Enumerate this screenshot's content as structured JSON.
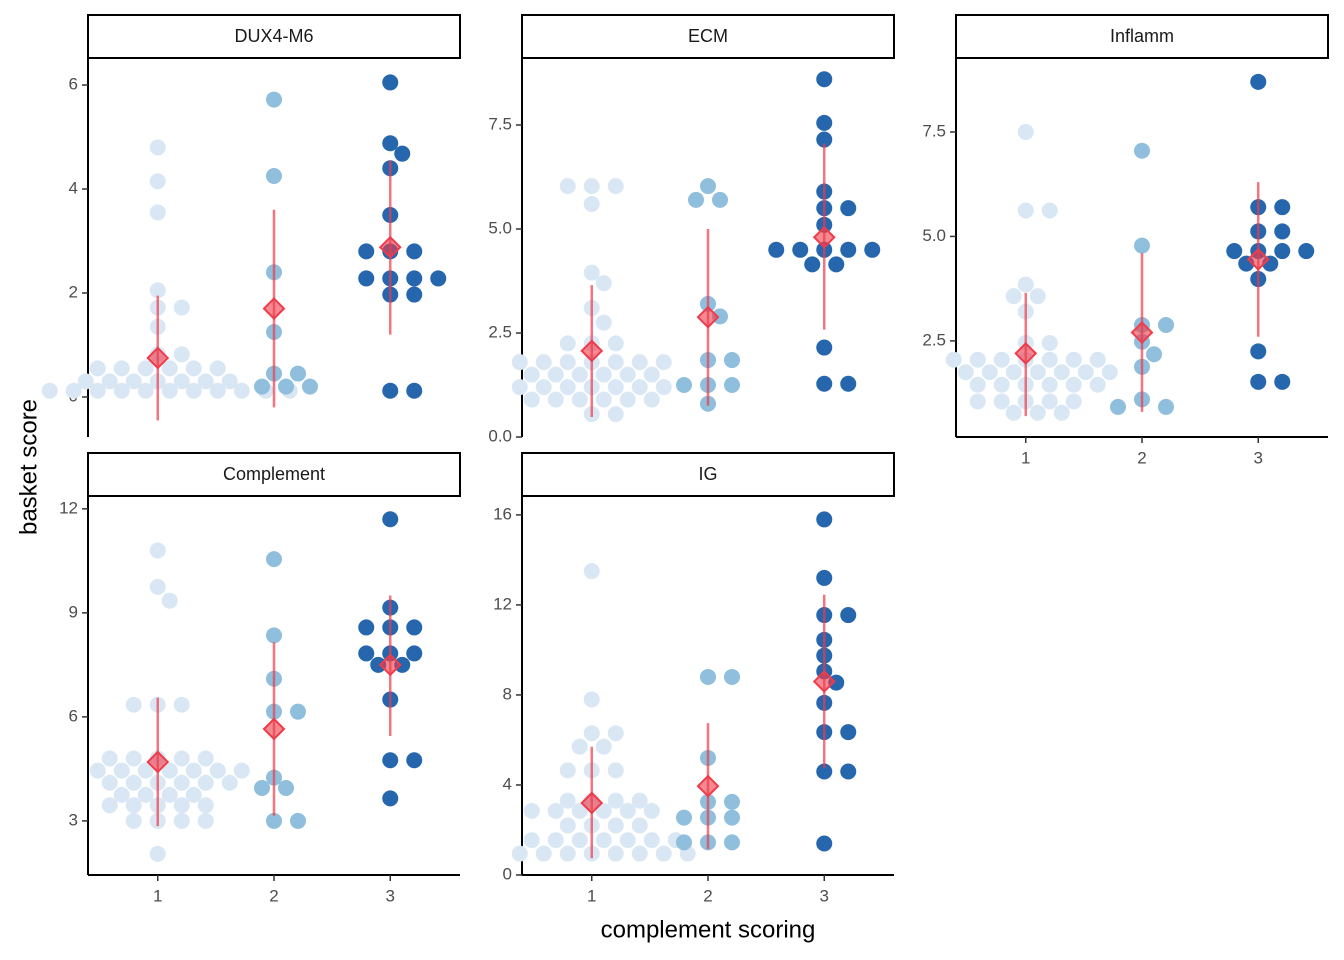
{
  "xlabel": "complement scoring",
  "ylabel": "basket score",
  "chart_data": [
    {
      "type": "beeswarm",
      "title": "DUX4-M6",
      "categories": [
        "1",
        "2",
        "3"
      ],
      "colors": [
        "#d9e7f5",
        "#8fbfdc",
        "#2666ad"
      ],
      "x_axis": false,
      "ylim": [
        -0.77,
        6.52
      ],
      "yticks": [
        0,
        2,
        4,
        6
      ],
      "values": [
        [
          4.8,
          4.15,
          3.55,
          2.05,
          1.72,
          1.72,
          1.35,
          0.82,
          0.82,
          0.55,
          0.55,
          0.55,
          0.55,
          0.55,
          0.55,
          0.3,
          0.3,
          0.3,
          0.3,
          0.3,
          0.3,
          0.3,
          0.12,
          0.12,
          0.12,
          0.12,
          0.12,
          0.12,
          0.12,
          0.12,
          0.12,
          0.12,
          0.12
        ],
        [
          5.72,
          4.25,
          2.4,
          1.25,
          0.45,
          0.45,
          0.2,
          0.2,
          0.2
        ],
        [
          6.05,
          4.88,
          4.68,
          4.4,
          3.5,
          2.8,
          2.8,
          2.8,
          2.28,
          2.28,
          2.28,
          2.28,
          1.97,
          1.97,
          0.12,
          0.12
        ]
      ],
      "summary": {
        "color": "#ef3b4a",
        "mean": [
          0.75,
          1.7,
          2.88
        ],
        "lower": [
          -0.45,
          -0.2,
          1.2
        ],
        "upper": [
          1.95,
          3.6,
          4.55
        ]
      }
    },
    {
      "type": "beeswarm",
      "title": "ECM",
      "categories": [
        "1",
        "2",
        "3"
      ],
      "colors": [
        "#d9e7f5",
        "#8fbfdc",
        "#2666ad"
      ],
      "x_axis": false,
      "ylim": [
        0,
        9.11
      ],
      "yticks": [
        {
          "value": 0,
          "label": "0.0"
        },
        {
          "value": 2.5,
          "label": "2.5"
        },
        {
          "value": 5,
          "label": "5.0"
        },
        {
          "value": 7.5,
          "label": "7.5"
        }
      ],
      "values": [
        [
          6.03,
          6.03,
          6.03,
          5.6,
          3.95,
          3.7,
          3.1,
          2.75,
          2.25,
          2.25,
          2.25,
          1.8,
          1.8,
          1.8,
          1.8,
          1.8,
          1.8,
          1.8,
          1.5,
          1.5,
          1.5,
          1.5,
          1.5,
          1.5,
          1.2,
          1.2,
          1.2,
          1.2,
          1.2,
          1.2,
          1.2,
          0.9,
          0.9,
          0.9,
          0.9,
          0.9,
          0.9,
          0.55,
          0.55
        ],
        [
          6.03,
          5.7,
          5.7,
          3.2,
          2.9,
          1.85,
          1.85,
          1.25,
          1.25,
          1.25,
          0.8
        ],
        [
          8.6,
          7.55,
          7.15,
          5.9,
          5.5,
          5.5,
          5.1,
          4.5,
          4.5,
          4.5,
          4.5,
          4.5,
          4.15,
          4.15,
          2.15,
          1.28,
          1.28
        ]
      ],
      "summary": {
        "color": "#ef3b4a",
        "mean": [
          2.07,
          2.88,
          4.8
        ],
        "lower": [
          0.48,
          0.75,
          2.58
        ],
        "upper": [
          3.65,
          5.0,
          7.05
        ]
      }
    },
    {
      "type": "beeswarm",
      "title": "Inflamm",
      "categories": [
        "1",
        "2",
        "3"
      ],
      "colors": [
        "#d9e7f5",
        "#8fbfdc",
        "#2666ad"
      ],
      "x_axis": true,
      "ylim": [
        0.2,
        9.27
      ],
      "yticks": [
        {
          "value": 2.5,
          "label": "2.5"
        },
        {
          "value": 5,
          "label": "5.0"
        },
        {
          "value": 7.5,
          "label": "7.5"
        }
      ],
      "values": [
        [
          7.5,
          5.62,
          5.62,
          3.85,
          3.57,
          3.57,
          3.2,
          2.45,
          2.45,
          2.05,
          2.05,
          2.05,
          2.05,
          2.05,
          2.05,
          2.05,
          1.75,
          1.75,
          1.75,
          1.75,
          1.75,
          1.75,
          1.75,
          1.45,
          1.45,
          1.45,
          1.45,
          1.45,
          1.45,
          1.05,
          1.05,
          1.05,
          1.05,
          1.05,
          0.78,
          0.78,
          0.78
        ],
        [
          7.05,
          4.78,
          2.88,
          2.88,
          2.48,
          2.18,
          1.88,
          1.1,
          0.92,
          0.92
        ],
        [
          8.7,
          5.7,
          5.7,
          5.12,
          5.12,
          4.65,
          4.65,
          4.65,
          4.65,
          4.35,
          4.35,
          3.98,
          2.25,
          1.52,
          1.52
        ]
      ],
      "summary": {
        "color": "#ef3b4a",
        "mean": [
          2.2,
          2.7,
          4.45
        ],
        "lower": [
          0.7,
          0.8,
          2.6
        ],
        "upper": [
          3.65,
          4.6,
          6.3
        ]
      }
    },
    {
      "type": "beeswarm",
      "title": "Complement",
      "categories": [
        "1",
        "2",
        "3"
      ],
      "colors": [
        "#d9e7f5",
        "#8fbfdc",
        "#2666ad"
      ],
      "x_axis": true,
      "ylim": [
        1.44,
        12.37
      ],
      "yticks": [
        3,
        6,
        9,
        12
      ],
      "values": [
        [
          10.8,
          9.75,
          9.35,
          6.35,
          6.35,
          6.35,
          4.8,
          4.8,
          4.8,
          4.8,
          4.8,
          4.45,
          4.45,
          4.45,
          4.45,
          4.45,
          4.45,
          4.45,
          4.1,
          4.1,
          4.1,
          4.1,
          4.1,
          4.1,
          3.75,
          3.75,
          3.75,
          3.75,
          3.45,
          3.45,
          3.45,
          3.45,
          3.45,
          3.0,
          3.0,
          3.0,
          3.0,
          2.05
        ],
        [
          10.55,
          8.35,
          7.1,
          6.15,
          6.15,
          4.25,
          3.95,
          3.95,
          3.0,
          3.0
        ],
        [
          11.7,
          9.15,
          8.58,
          8.58,
          8.58,
          7.83,
          7.83,
          7.83,
          7.5,
          7.5,
          6.5,
          4.75,
          4.75,
          3.65
        ]
      ],
      "summary": {
        "color": "#ef3b4a",
        "mean": [
          4.7,
          5.65,
          7.5
        ],
        "lower": [
          2.85,
          3.15,
          5.45
        ],
        "upper": [
          6.55,
          8.15,
          9.5
        ]
      }
    },
    {
      "type": "beeswarm",
      "title": "IG",
      "categories": [
        "1",
        "2",
        "3"
      ],
      "colors": [
        "#d9e7f5",
        "#8fbfdc",
        "#2666ad"
      ],
      "x_axis": true,
      "ylim": [
        0,
        16.84
      ],
      "yticks": [
        0,
        4,
        8,
        12,
        16
      ],
      "values": [
        [
          13.5,
          7.8,
          6.3,
          6.3,
          5.7,
          5.7,
          4.65,
          4.65,
          4.65,
          3.3,
          3.3,
          3.3,
          3.3,
          2.85,
          2.85,
          2.85,
          2.85,
          2.85,
          2.85,
          2.2,
          2.2,
          2.2,
          2.2,
          1.55,
          1.55,
          1.55,
          1.55,
          1.55,
          1.55,
          1.55,
          0.95,
          0.95,
          0.95,
          0.95,
          0.95,
          0.95,
          0.95,
          0.95
        ],
        [
          8.8,
          8.8,
          5.2,
          3.25,
          3.25,
          2.55,
          2.55,
          2.55,
          1.45,
          1.45,
          1.45
        ],
        [
          15.8,
          13.2,
          11.55,
          11.55,
          10.45,
          9.75,
          9.05,
          8.55,
          7.65,
          6.35,
          6.35,
          4.6,
          4.6,
          1.4
        ]
      ],
      "summary": {
        "color": "#ef3b4a",
        "mean": [
          3.2,
          3.95,
          8.6
        ],
        "lower": [
          0.75,
          1.15,
          4.75
        ],
        "upper": [
          5.7,
          6.75,
          12.45
        ]
      }
    }
  ]
}
